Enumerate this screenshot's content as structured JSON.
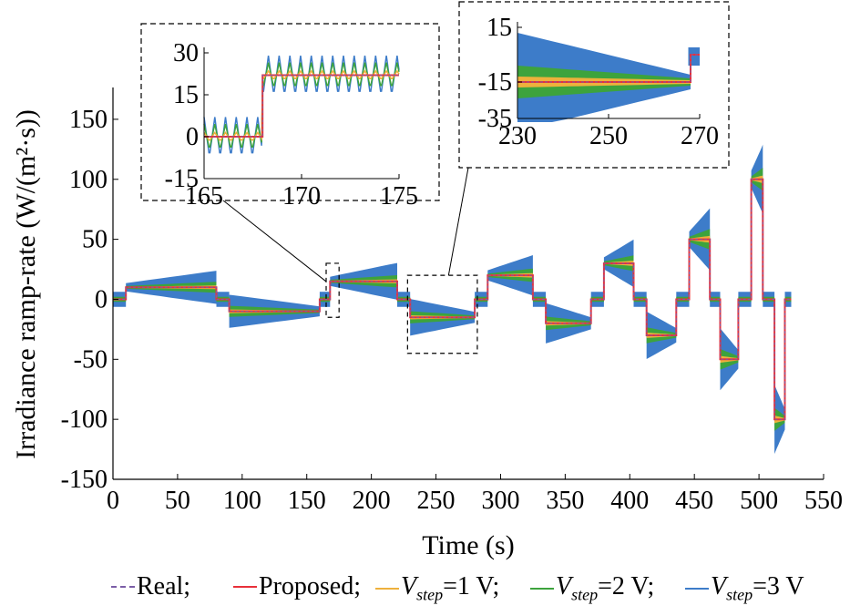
{
  "chart_data": {
    "type": "line",
    "xlabel": "Time (s)",
    "ylabel": "Irradiance ramp-rate (W/(m²·s))",
    "xlim": [
      0,
      550
    ],
    "ylim": [
      -150,
      175
    ],
    "xticks": [
      0,
      50,
      100,
      150,
      200,
      250,
      300,
      350,
      400,
      450,
      500,
      550
    ],
    "yticks": [
      -150,
      -100,
      -50,
      0,
      50,
      100,
      150
    ],
    "segments": [
      {
        "start": 0,
        "end": 10,
        "value": 0
      },
      {
        "start": 10,
        "end": 80,
        "value": 10
      },
      {
        "start": 80,
        "end": 90,
        "value": 0
      },
      {
        "start": 90,
        "end": 160,
        "value": -10
      },
      {
        "start": 160,
        "end": 168,
        "value": 0
      },
      {
        "start": 168,
        "end": 220,
        "value": 15
      },
      {
        "start": 220,
        "end": 230,
        "value": 0
      },
      {
        "start": 230,
        "end": 280,
        "value": -15
      },
      {
        "start": 280,
        "end": 290,
        "value": 0
      },
      {
        "start": 290,
        "end": 325,
        "value": 20
      },
      {
        "start": 325,
        "end": 335,
        "value": 0
      },
      {
        "start": 335,
        "end": 370,
        "value": -20
      },
      {
        "start": 370,
        "end": 380,
        "value": 0
      },
      {
        "start": 380,
        "end": 403,
        "value": 30
      },
      {
        "start": 403,
        "end": 413,
        "value": 0
      },
      {
        "start": 413,
        "end": 436,
        "value": -30
      },
      {
        "start": 436,
        "end": 446,
        "value": 0
      },
      {
        "start": 446,
        "end": 462,
        "value": 50
      },
      {
        "start": 462,
        "end": 470,
        "value": 0
      },
      {
        "start": 470,
        "end": 484,
        "value": -50
      },
      {
        "start": 484,
        "end": 494,
        "value": 0
      },
      {
        "start": 494,
        "end": 503,
        "value": 100
      },
      {
        "start": 503,
        "end": 512,
        "value": 0
      },
      {
        "start": 512,
        "end": 520,
        "value": -100
      },
      {
        "start": 520,
        "end": 525,
        "value": 0
      }
    ],
    "band_half_width": {
      "Vstep=1 V": 2,
      "Vstep=2 V": 6,
      "Vstep=3 V": 18
    },
    "insets": [
      {
        "xlim": [
          165,
          175
        ],
        "ylim": [
          -15,
          30
        ],
        "xticks": [
          165,
          170,
          175
        ],
        "yticks": [
          -15,
          0,
          15,
          30
        ]
      },
      {
        "xlim": [
          230,
          270
        ],
        "ylim": [
          -35,
          15
        ],
        "xticks": [
          230,
          250,
          270
        ],
        "yticks": [
          -35,
          -15,
          15
        ]
      }
    ],
    "legend": [
      {
        "name": "Real",
        "color": "#7b5ea7",
        "style": "dashed"
      },
      {
        "name": "Proposed",
        "color": "#e8303a",
        "style": "solid"
      },
      {
        "name": "Vstep=1 V",
        "color": "#eeb13c",
        "style": "solid"
      },
      {
        "name": "Vstep=2 V",
        "color": "#3da33d",
        "style": "solid"
      },
      {
        "name": "Vstep=3 V",
        "color": "#3d7cc9",
        "style": "solid"
      }
    ]
  },
  "legend_text": {
    "real": "Real;",
    "proposed": "Proposed;",
    "v_prefix": "V",
    "v_sub": "step",
    "v1_suffix": "=1 V;",
    "v2_suffix": "=2 V;",
    "v3_suffix": "=3 V"
  }
}
